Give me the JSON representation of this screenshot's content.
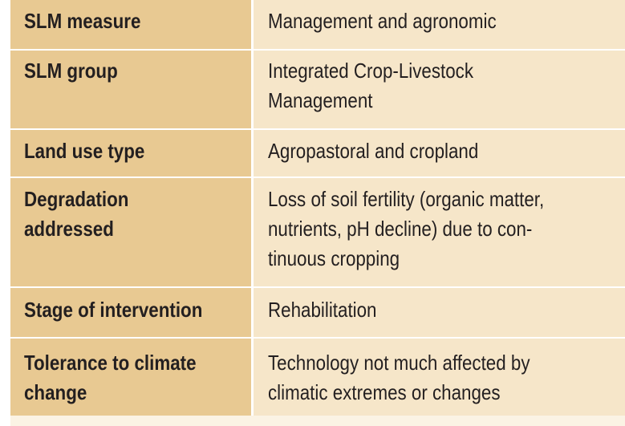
{
  "rows": [
    {
      "label": "SLM measure",
      "value": "Management and agronomic"
    },
    {
      "label": "SLM group",
      "value": "Integrated Crop-Livestock\nManagement"
    },
    {
      "label": "Land use type",
      "value": "Agropastoral and cropland"
    },
    {
      "label": "Degradation\naddressed",
      "value": "Loss of soil fertility (organic matter,\nnutrients, pH decline) due to con-\ntinuous cropping"
    },
    {
      "label": "Stage of intervention",
      "value": "Rehabilitation"
    },
    {
      "label": "Tolerance to climate\nchange",
      "value": "Technology not much affected by\nclimatic extremes or changes"
    }
  ],
  "colors": {
    "label_bg": "#e8c992",
    "value_bg": "#f6e6c9",
    "text": "#231f20"
  }
}
